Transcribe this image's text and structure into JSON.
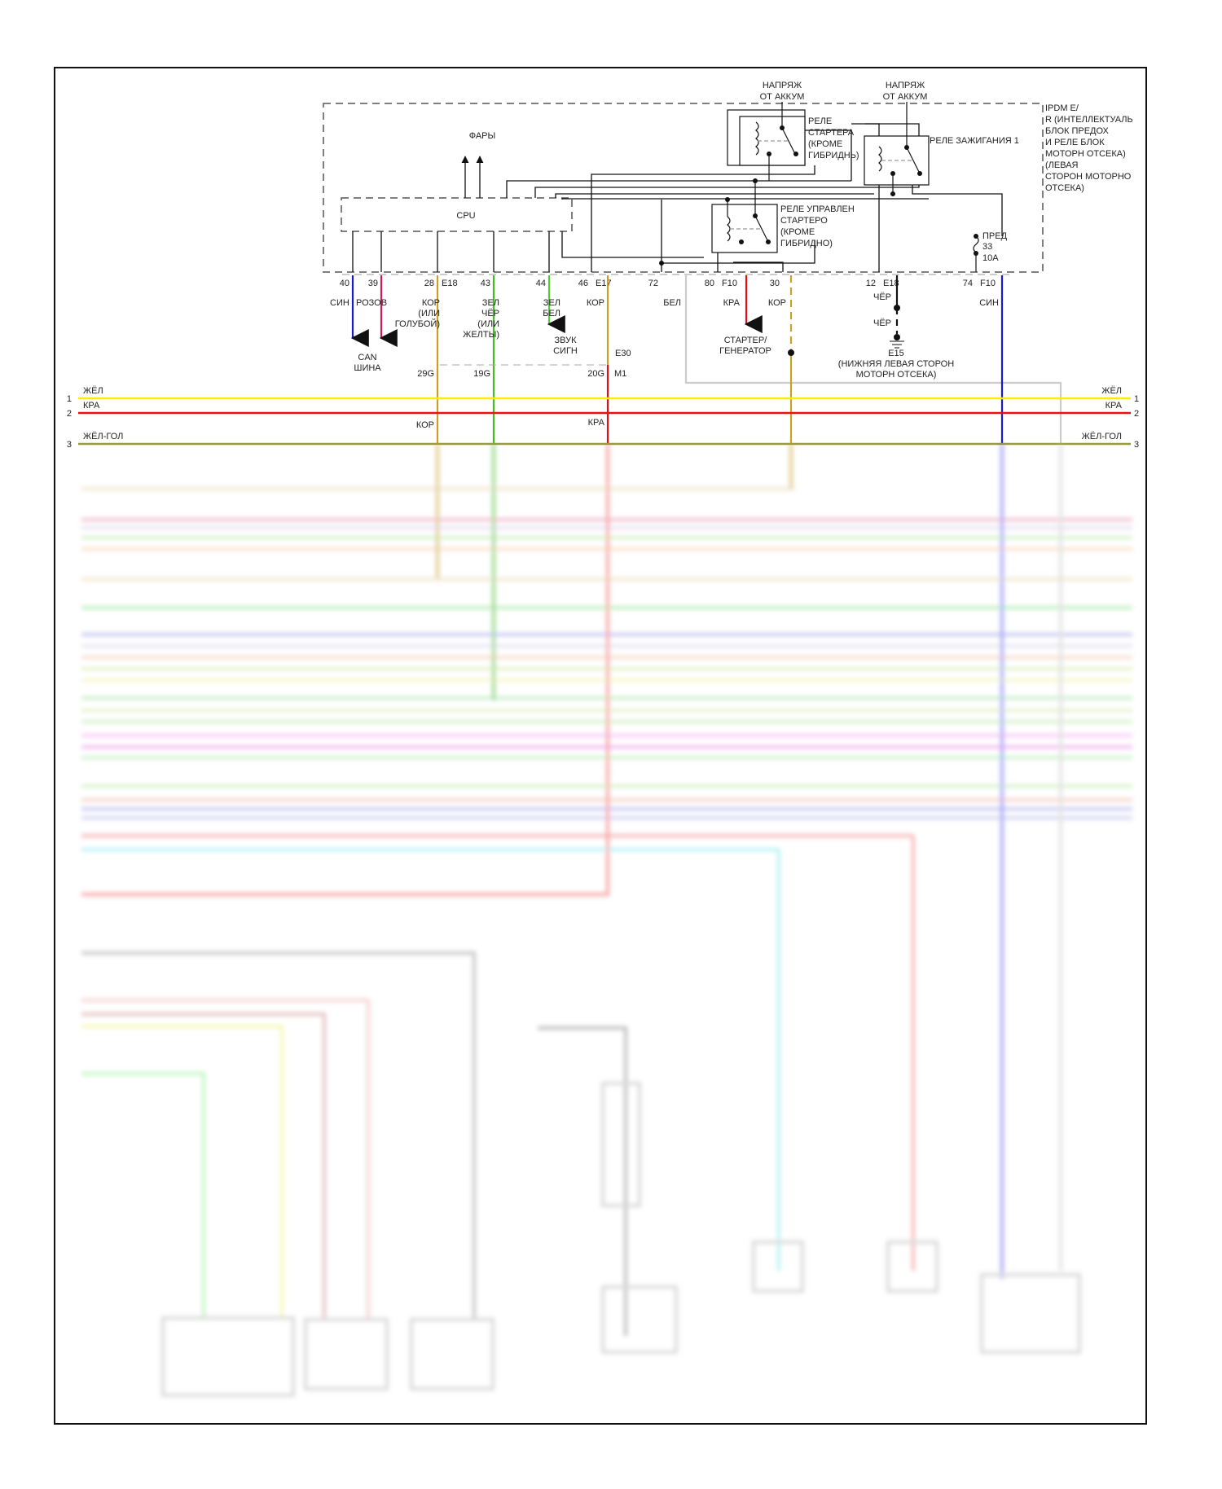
{
  "ipdm": {
    "title_lines": [
      "IPDM E/",
      "R (ИНТЕЛЛЕКТУАЛЬ",
      "БЛОК ПРЕДОХ",
      "И РЕЛЕ БЛОК",
      "МОТОРН ОТСЕКА)",
      "(ЛЕВАЯ",
      "СТОРОН МОТОРНО",
      "ОТСЕКА)"
    ],
    "cpu": "CPU",
    "headlights": "ФАРЫ",
    "battery_voltage_1": [
      "НАПРЯЖ",
      "ОТ АККУМ"
    ],
    "battery_voltage_2": [
      "НАПРЯЖ",
      "ОТ АККУМ"
    ],
    "starter_relay": [
      "РЕЛЕ",
      "СТАРТЕРА",
      "(КРОМЕ",
      "ГИБРИДНЬ)"
    ],
    "ignition_relay": "РЕЛЕ ЗАЖИГАНИЯ 1",
    "starter_control_relay": [
      "РЕЛЕ УПРАВЛЕН",
      "СТАРТЕРО",
      "(КРОМЕ",
      "ГИБРИДНО)"
    ],
    "fuse": [
      "ПРЕД",
      "33",
      "10A"
    ]
  },
  "pins": [
    {
      "num": "40",
      "connector": "",
      "wire": "СИН",
      "color": "#1a1acc"
    },
    {
      "num": "39",
      "connector": "",
      "wire": "РОЗОВ",
      "color": "#cc1a55"
    },
    {
      "num": "28",
      "connector": "E18",
      "wire": "КОР (ИЛИ ГОЛУБОЙ)",
      "color": "#c8a028"
    },
    {
      "num": "43",
      "connector": "",
      "wire": "ЗЕЛ ЧЁР (ИЛИ ЖЕЛТЫ)",
      "color": "#44bb22"
    },
    {
      "num": "44",
      "connector": "",
      "wire": "ЗЕЛ БЕЛ",
      "color": "#55cc33"
    },
    {
      "num": "46",
      "connector": "E17",
      "wire": "КОР",
      "color": "#c8a028"
    },
    {
      "num": "72",
      "connector": "",
      "wire": "БЕЛ",
      "color": "#cccccc"
    },
    {
      "num": "80",
      "connector": "F10",
      "wire": "КРА",
      "color": "#dd1111"
    },
    {
      "num": "30",
      "connector": "",
      "wire": "КОР",
      "color": "#c8a028"
    },
    {
      "num": "12",
      "connector": "E18",
      "wire": "ЧЁР",
      "color": "#111111"
    },
    {
      "num": "74",
      "connector": "F10",
      "wire": "СИН",
      "color": "#1a1acc"
    }
  ],
  "labels": {
    "wire_40": "СИН",
    "wire_39": "РОЗОВ",
    "wire_28": [
      "КОР",
      "(ИЛИ",
      "ГОЛУБОЙ)"
    ],
    "wire_43": [
      "ЗЕЛ",
      "ЧЁР",
      "(ИЛИ",
      "ЖЕЛТЫ)"
    ],
    "wire_44": [
      "ЗЕЛ",
      "БЕЛ"
    ],
    "wire_46": "КОР",
    "wire_72": "БЕЛ",
    "wire_80": "КРА",
    "wire_30": "КОР",
    "wire_12a": "ЧЁР",
    "wire_12b": "ЧЁР",
    "wire_74": "СИН",
    "can_bus": [
      "CAN",
      "ШИНА"
    ],
    "horn": [
      "ЗВУК",
      "СИГН"
    ],
    "starter_gen": [
      "СТАРТЕР/",
      "ГЕНЕРАТОР"
    ],
    "ground": [
      "E15",
      "(НИЖНЯЯ ЛЕВАЯ СТОРОН",
      "МОТОРН ОТСЕКА)"
    ],
    "e30": "E30",
    "pin_29g": "29G",
    "pin_19g": "19G",
    "pin_20g": "20G",
    "m1": "M1",
    "below_28": "КОР",
    "below_46": "КРА"
  },
  "bus": [
    {
      "num": "1",
      "name": "ЖЁЛ",
      "color": "#f4f000"
    },
    {
      "num": "2",
      "name": "КРА",
      "color": "#e81010"
    },
    {
      "num": "3",
      "name": "ЖЁЛ-ГОЛ",
      "color": "#9a9a40"
    }
  ]
}
